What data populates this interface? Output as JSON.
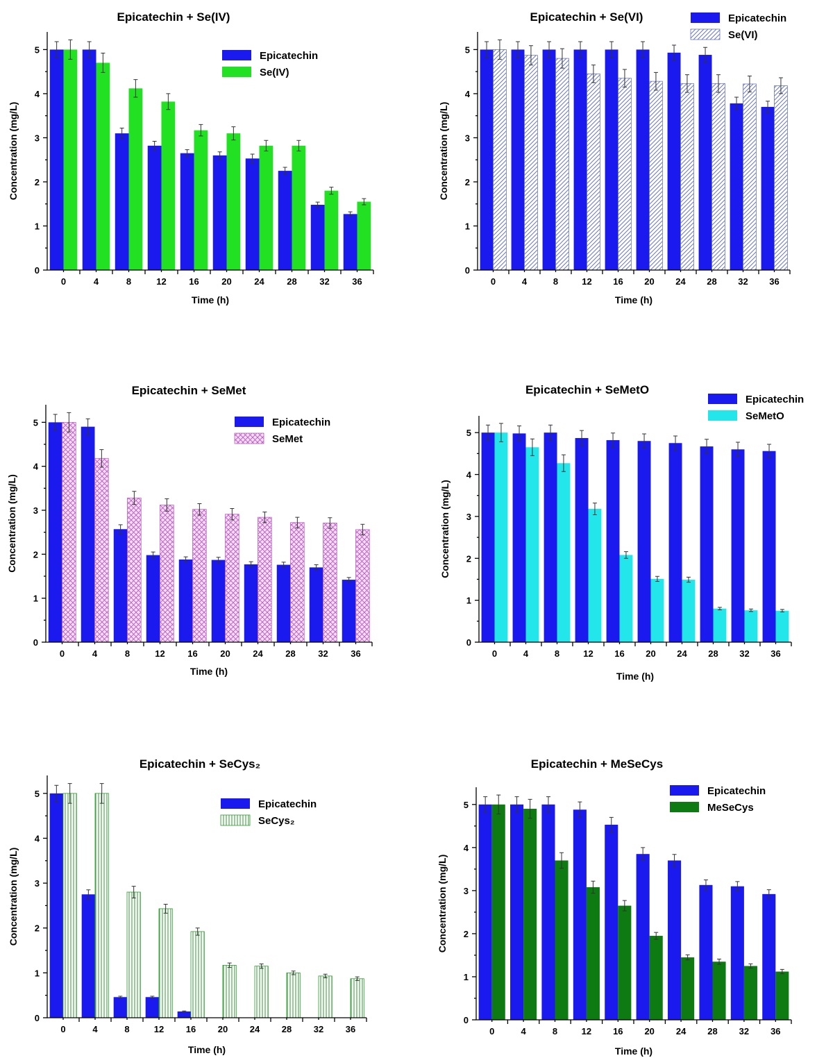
{
  "chart_data": [
    {
      "type": "bar",
      "title": "Epicatechin + Se(IV)",
      "xlabel": "Time (h)",
      "ylabel": "Concentration (mg/L)",
      "categories": [
        "0",
        "4",
        "8",
        "12",
        "16",
        "20",
        "24",
        "28",
        "32",
        "36"
      ],
      "ylim": [
        0,
        5.4
      ],
      "yticks": [
        "0",
        "1",
        "2",
        "3",
        "4",
        "5"
      ],
      "legend_position": "top-right",
      "series": [
        {
          "name": "Epicatechin",
          "color": "#1a1aee",
          "pattern": "solid",
          "values": [
            5.0,
            5.0,
            3.1,
            2.82,
            2.65,
            2.6,
            2.53,
            2.25,
            1.48,
            1.27
          ],
          "errors": [
            0.18,
            0.18,
            0.12,
            0.1,
            0.08,
            0.08,
            0.1,
            0.08,
            0.06,
            0.05
          ]
        },
        {
          "name": "Se(IV)",
          "color": "#22e022",
          "pattern": "solid",
          "values": [
            5.0,
            4.7,
            4.12,
            3.82,
            3.17,
            3.1,
            2.82,
            2.82,
            1.8,
            1.55
          ],
          "errors": [
            0.22,
            0.22,
            0.2,
            0.18,
            0.13,
            0.15,
            0.12,
            0.12,
            0.08,
            0.07
          ]
        }
      ]
    },
    {
      "type": "bar",
      "title": "Epicatechin + Se(VI)",
      "xlabel": "Time (h)",
      "ylabel": "Concentration (mg/L)",
      "categories": [
        "0",
        "4",
        "8",
        "12",
        "16",
        "20",
        "24",
        "28",
        "32",
        "36"
      ],
      "ylim": [
        0,
        5.4
      ],
      "yticks": [
        "0",
        "1",
        "2",
        "3",
        "4",
        "5"
      ],
      "legend_position": "top-right",
      "series": [
        {
          "name": "Epicatechin",
          "color": "#1a1aee",
          "pattern": "solid",
          "values": [
            5.0,
            5.0,
            5.0,
            5.0,
            5.0,
            5.0,
            4.93,
            4.88,
            3.78,
            3.7
          ],
          "errors": [
            0.18,
            0.18,
            0.18,
            0.18,
            0.18,
            0.18,
            0.17,
            0.17,
            0.14,
            0.13
          ]
        },
        {
          "name": "Se(VI)",
          "color": "#6a78b8",
          "pattern": "diagonal",
          "values": [
            5.0,
            4.87,
            4.8,
            4.45,
            4.35,
            4.28,
            4.23,
            4.23,
            4.22,
            4.18
          ],
          "errors": [
            0.22,
            0.22,
            0.22,
            0.2,
            0.2,
            0.2,
            0.2,
            0.2,
            0.18,
            0.18
          ]
        }
      ]
    },
    {
      "type": "bar",
      "title": "Epicatechin + SeMet",
      "xlabel": "Time (h)",
      "ylabel": "Concentration (mg/L)",
      "categories": [
        "0",
        "4",
        "8",
        "12",
        "16",
        "20",
        "24",
        "28",
        "32",
        "36"
      ],
      "ylim": [
        0,
        5.4
      ],
      "yticks": [
        "0",
        "1",
        "2",
        "3",
        "4",
        "5"
      ],
      "legend_position": "top-right",
      "series": [
        {
          "name": "Epicatechin",
          "color": "#1a1aee",
          "pattern": "solid",
          "values": [
            5.0,
            4.9,
            2.57,
            1.98,
            1.88,
            1.87,
            1.77,
            1.76,
            1.7,
            1.42
          ],
          "errors": [
            0.18,
            0.18,
            0.1,
            0.07,
            0.06,
            0.06,
            0.06,
            0.06,
            0.06,
            0.05
          ]
        },
        {
          "name": "SeMet",
          "color": "#c060c8",
          "pattern": "crosshatch",
          "values": [
            5.0,
            4.18,
            3.28,
            3.12,
            3.02,
            2.91,
            2.84,
            2.72,
            2.71,
            2.56
          ],
          "errors": [
            0.22,
            0.2,
            0.15,
            0.14,
            0.13,
            0.13,
            0.12,
            0.12,
            0.12,
            0.12
          ]
        }
      ]
    },
    {
      "type": "bar",
      "title": "Epicatechin + SeMetO",
      "xlabel": "Time (h)",
      "ylabel": "Concentration (mg/L)",
      "categories": [
        "0",
        "4",
        "8",
        "12",
        "16",
        "20",
        "24",
        "28",
        "32",
        "36"
      ],
      "ylim": [
        0,
        5.4
      ],
      "yticks": [
        "0",
        "1",
        "2",
        "3",
        "4",
        "5"
      ],
      "legend_position": "top-right",
      "series": [
        {
          "name": "Epicatechin",
          "color": "#1a1aee",
          "pattern": "solid",
          "values": [
            5.0,
            4.98,
            5.0,
            4.87,
            4.82,
            4.8,
            4.75,
            4.67,
            4.6,
            4.56
          ],
          "errors": [
            0.18,
            0.18,
            0.18,
            0.18,
            0.17,
            0.17,
            0.17,
            0.17,
            0.17,
            0.16
          ]
        },
        {
          "name": "SeMetO",
          "color": "#22e6ea",
          "pattern": "solid",
          "values": [
            5.0,
            4.65,
            4.27,
            3.18,
            2.08,
            1.51,
            1.49,
            0.8,
            0.76,
            0.75
          ],
          "errors": [
            0.22,
            0.2,
            0.2,
            0.14,
            0.08,
            0.06,
            0.06,
            0.03,
            0.03,
            0.03
          ]
        }
      ]
    },
    {
      "type": "bar",
      "title": "Epicatechin + SeCys₂",
      "xlabel": "Time (h)",
      "ylabel": "Concentration (mg/L)",
      "categories": [
        "0",
        "4",
        "8",
        "12",
        "16",
        "20",
        "24",
        "28",
        "32",
        "36"
      ],
      "ylim": [
        0,
        5.4
      ],
      "yticks": [
        "0",
        "1",
        "2",
        "3",
        "4",
        "5"
      ],
      "legend_position": "top-right",
      "series": [
        {
          "name": "Epicatechin",
          "color": "#1a1aee",
          "pattern": "solid",
          "values": [
            5.0,
            2.75,
            0.46,
            0.46,
            0.14,
            0,
            0,
            0,
            0,
            0
          ],
          "errors": [
            0.18,
            0.1,
            0.02,
            0.02,
            0.01,
            0,
            0,
            0,
            0,
            0
          ]
        },
        {
          "name": "SeCys₂",
          "color": "#2e9a2e",
          "pattern": "vertical",
          "values": [
            5.0,
            5.0,
            2.8,
            2.43,
            1.92,
            1.17,
            1.15,
            1.0,
            0.93,
            0.87
          ],
          "errors": [
            0.22,
            0.22,
            0.13,
            0.1,
            0.08,
            0.05,
            0.05,
            0.04,
            0.04,
            0.04
          ]
        }
      ]
    },
    {
      "type": "bar",
      "title": "Epicatechin + MeSeCys",
      "xlabel": "Time (h)",
      "ylabel": "Concentration (mg/L)",
      "categories": [
        "0",
        "4",
        "8",
        "12",
        "16",
        "20",
        "24",
        "28",
        "32",
        "36"
      ],
      "ylim": [
        0,
        5.4
      ],
      "yticks": [
        "0",
        "1",
        "2",
        "3",
        "4",
        "5"
      ],
      "legend_position": "top-right",
      "series": [
        {
          "name": "Epicatechin",
          "color": "#1a1aee",
          "pattern": "solid",
          "values": [
            5.0,
            5.0,
            5.0,
            4.88,
            4.53,
            3.85,
            3.7,
            3.13,
            3.1,
            2.92
          ],
          "errors": [
            0.18,
            0.18,
            0.18,
            0.18,
            0.17,
            0.15,
            0.14,
            0.12,
            0.11,
            0.1
          ]
        },
        {
          "name": "MeSeCys",
          "color": "#0e7a12",
          "pattern": "solid",
          "values": [
            5.0,
            4.9,
            3.7,
            3.08,
            2.65,
            1.95,
            1.45,
            1.35,
            1.25,
            1.12
          ],
          "errors": [
            0.22,
            0.22,
            0.18,
            0.14,
            0.12,
            0.08,
            0.06,
            0.06,
            0.05,
            0.05
          ]
        }
      ]
    }
  ]
}
